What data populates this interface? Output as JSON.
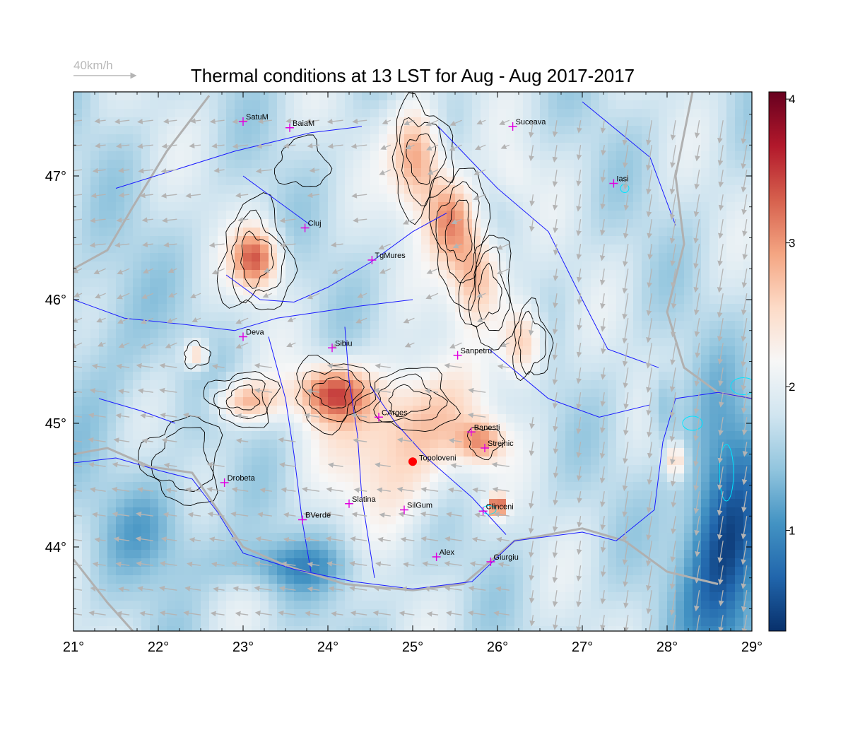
{
  "title": "Thermal conditions at 13 LST for Aug - Aug  2017-2017",
  "wind_scale": {
    "label": "40km/h"
  },
  "map": {
    "lon_range": [
      21,
      29
    ],
    "lat_range": [
      43.32,
      47.68
    ],
    "lon_ticks": [
      {
        "value": 21,
        "label": "21°"
      },
      {
        "value": 22,
        "label": "22°"
      },
      {
        "value": 23,
        "label": "23°"
      },
      {
        "value": 24,
        "label": "24°"
      },
      {
        "value": 25,
        "label": "25°"
      },
      {
        "value": 26,
        "label": "26°"
      },
      {
        "value": 27,
        "label": "27°"
      },
      {
        "value": 28,
        "label": "28°"
      },
      {
        "value": 29,
        "label": "29°"
      }
    ],
    "lat_ticks": [
      {
        "value": 44,
        "label": "44°"
      },
      {
        "value": 45,
        "label": "45°"
      },
      {
        "value": 46,
        "label": "46°"
      },
      {
        "value": 47,
        "label": "47°"
      }
    ]
  },
  "colorbar": {
    "range": [
      0.3,
      4.05
    ],
    "ticks": [
      {
        "value": 1,
        "label": "1"
      },
      {
        "value": 2,
        "label": "2"
      },
      {
        "value": 3,
        "label": "3"
      },
      {
        "value": 4,
        "label": "4"
      }
    ],
    "colors": [
      "#08306b",
      "#2166ac",
      "#4393c3",
      "#92c5de",
      "#d1e5f0",
      "#f7f7f7",
      "#fddbc7",
      "#f4a582",
      "#d6604d",
      "#b2182b",
      "#67001f"
    ]
  },
  "colors": {
    "river": "#1a1aff",
    "border": "#b0b0b0",
    "city_marker": "#e000e0",
    "highlight_marker": "#ff0000",
    "wind_arrow": "#b4b4b4",
    "contour": "#000000",
    "lake": "#00e5ff"
  },
  "stations": [
    {
      "name": "SatuM",
      "lon": 23.0,
      "lat": 47.44
    },
    {
      "name": "BaiaM",
      "lon": 23.55,
      "lat": 47.39
    },
    {
      "name": "Suceava",
      "lon": 26.18,
      "lat": 47.4
    },
    {
      "name": "Iasi",
      "lon": 27.37,
      "lat": 46.94
    },
    {
      "name": "Cluj",
      "lon": 23.73,
      "lat": 46.58
    },
    {
      "name": "TgMures",
      "lon": 24.52,
      "lat": 46.32
    },
    {
      "name": "Deva",
      "lon": 23.0,
      "lat": 45.7
    },
    {
      "name": "Sibiu",
      "lon": 24.05,
      "lat": 45.61
    },
    {
      "name": "Sanpetru",
      "lon": 25.53,
      "lat": 45.55
    },
    {
      "name": "CArges",
      "lon": 24.6,
      "lat": 45.05
    },
    {
      "name": "Banesti",
      "lon": 25.69,
      "lat": 44.93
    },
    {
      "name": "Strejnic",
      "lon": 25.85,
      "lat": 44.8
    },
    {
      "name": "Drobeta",
      "lon": 22.78,
      "lat": 44.52
    },
    {
      "name": "Slatina",
      "lon": 24.25,
      "lat": 44.35
    },
    {
      "name": "SilGum",
      "lon": 24.9,
      "lat": 44.3
    },
    {
      "name": "Clinceni",
      "lon": 25.83,
      "lat": 44.29
    },
    {
      "name": "BVerde",
      "lon": 23.7,
      "lat": 44.22
    },
    {
      "name": "Alex",
      "lon": 25.28,
      "lat": 43.92
    },
    {
      "name": "Giurgiu",
      "lon": 25.92,
      "lat": 43.88
    }
  ],
  "highlight": {
    "name": "Topoloveni",
    "lon": 25.0,
    "lat": 44.69
  }
}
